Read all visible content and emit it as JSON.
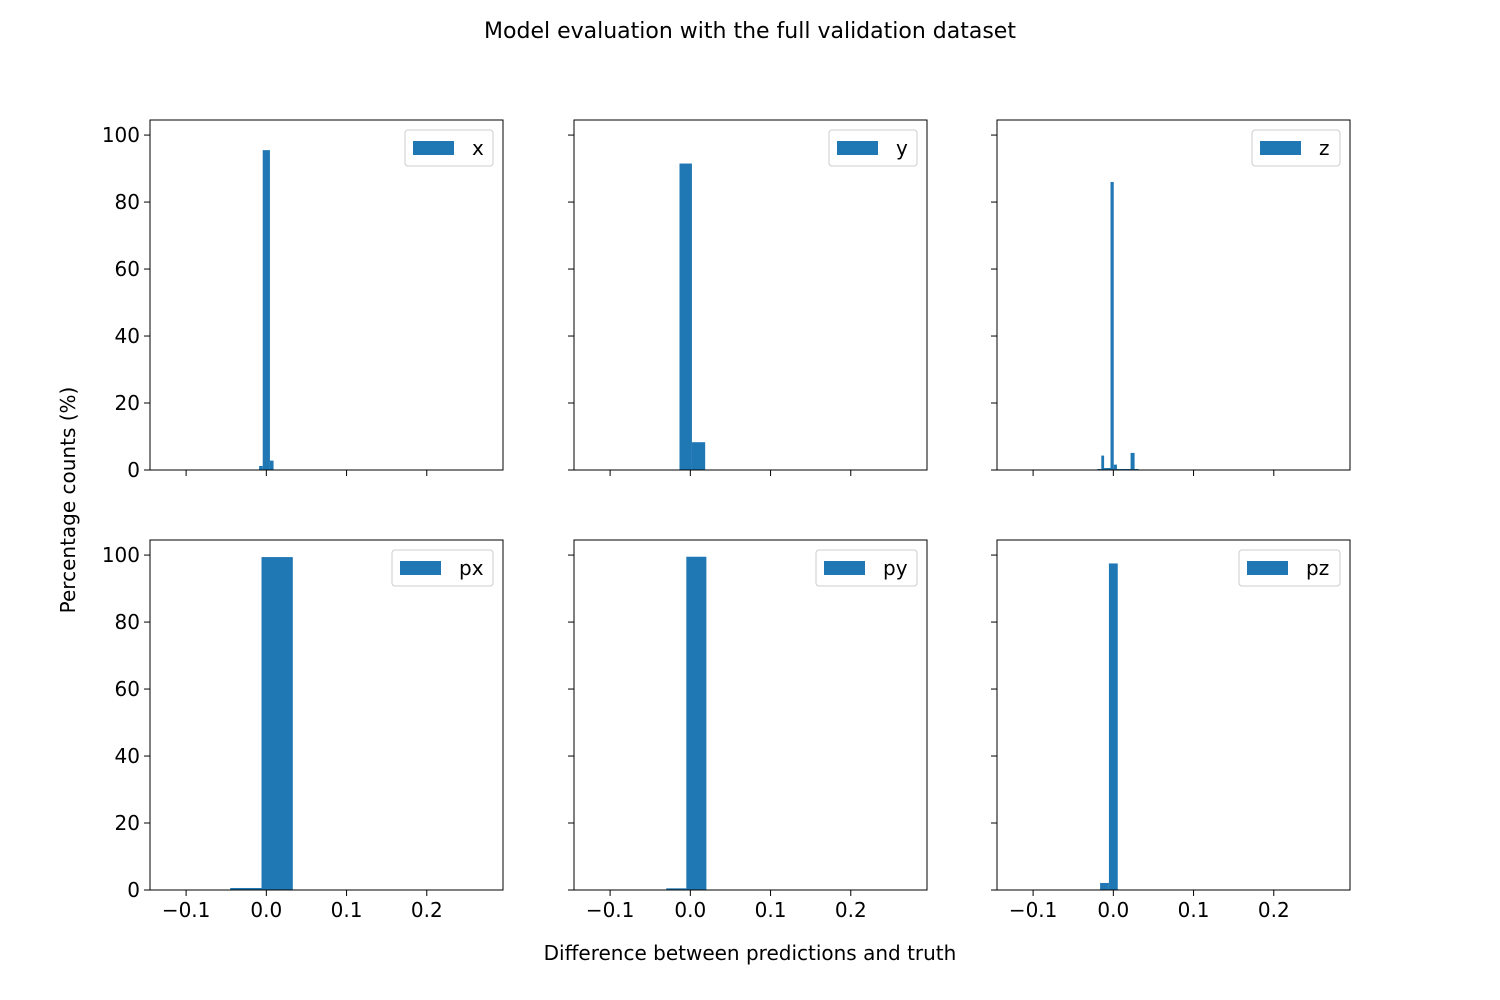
{
  "figure": {
    "title": "Model evaluation with the full validation dataset",
    "ylabel": "Percentage counts (%)",
    "xlabel": "Difference between predictions and truth"
  },
  "chart_data": [
    {
      "type": "bar",
      "legend": "x",
      "legend_position": "top-right",
      "color": "#1f77b4",
      "xlim": [
        -0.145,
        0.295
      ],
      "ylim": [
        0,
        104.5
      ],
      "xticks": [
        -0.1,
        0.0,
        0.1,
        0.2
      ],
      "xtick_labels": [
        "−0.1",
        "0.0",
        "0.1",
        "0.2"
      ],
      "yticks": [
        0,
        20,
        40,
        60,
        80,
        100
      ],
      "ytick_labels": [
        "0",
        "20",
        "40",
        "60",
        "80",
        "100"
      ],
      "show_xtick_labels": false,
      "show_ytick_labels": true,
      "bins": [
        {
          "x0": -0.009,
          "x1": -0.0045,
          "value": 1.2
        },
        {
          "x0": -0.0045,
          "x1": 0.0045,
          "value": 95.5
        },
        {
          "x0": 0.0045,
          "x1": 0.009,
          "value": 2.8
        }
      ]
    },
    {
      "type": "bar",
      "legend": "y",
      "legend_position": "top-right",
      "color": "#1f77b4",
      "xlim": [
        -0.145,
        0.295
      ],
      "ylim": [
        0,
        104.5
      ],
      "xticks": [
        -0.1,
        0.0,
        0.1,
        0.2
      ],
      "xtick_labels": [
        "−0.1",
        "0.0",
        "0.1",
        "0.2"
      ],
      "yticks": [
        0,
        20,
        40,
        60,
        80,
        100
      ],
      "ytick_labels": [
        "0",
        "20",
        "40",
        "60",
        "80",
        "100"
      ],
      "show_xtick_labels": false,
      "show_ytick_labels": false,
      "bins": [
        {
          "x0": -0.0135,
          "x1": 0.002,
          "value": 91.5
        },
        {
          "x0": 0.002,
          "x1": 0.0185,
          "value": 8.3
        }
      ]
    },
    {
      "type": "bar",
      "legend": "z",
      "legend_position": "top-right",
      "color": "#1f77b4",
      "xlim": [
        -0.145,
        0.295
      ],
      "ylim": [
        0,
        104.5
      ],
      "xticks": [
        -0.1,
        0.0,
        0.1,
        0.2
      ],
      "xtick_labels": [
        "−0.1",
        "0.0",
        "0.1",
        "0.2"
      ],
      "yticks": [
        0,
        20,
        40,
        60,
        80,
        100
      ],
      "ytick_labels": [
        "0",
        "20",
        "40",
        "60",
        "80",
        "100"
      ],
      "show_xtick_labels": false,
      "show_ytick_labels": false,
      "bins": [
        {
          "x0": -0.02,
          "x1": -0.015,
          "value": 0.3
        },
        {
          "x0": -0.015,
          "x1": -0.0115,
          "value": 4.3
        },
        {
          "x0": -0.0115,
          "x1": -0.0035,
          "value": 0.6
        },
        {
          "x0": -0.0035,
          "x1": 0.0005,
          "value": 86
        },
        {
          "x0": 0.0005,
          "x1": 0.0045,
          "value": 1.6
        },
        {
          "x0": 0.0045,
          "x1": 0.0215,
          "value": 0.3
        },
        {
          "x0": 0.0215,
          "x1": 0.0265,
          "value": 5.1
        },
        {
          "x0": 0.0265,
          "x1": 0.0315,
          "value": 0.3
        }
      ]
    },
    {
      "type": "bar",
      "legend": "px",
      "legend_position": "top-right",
      "color": "#1f77b4",
      "xlim": [
        -0.145,
        0.295
      ],
      "ylim": [
        0,
        104.5
      ],
      "xticks": [
        -0.1,
        0.0,
        0.1,
        0.2
      ],
      "xtick_labels": [
        "−0.1",
        "0.0",
        "0.1",
        "0.2"
      ],
      "yticks": [
        0,
        20,
        40,
        60,
        80,
        100
      ],
      "ytick_labels": [
        "0",
        "20",
        "40",
        "60",
        "80",
        "100"
      ],
      "show_xtick_labels": true,
      "show_ytick_labels": true,
      "bins": [
        {
          "x0": -0.045,
          "x1": -0.006,
          "value": 0.6
        },
        {
          "x0": -0.006,
          "x1": 0.033,
          "value": 99.4
        }
      ]
    },
    {
      "type": "bar",
      "legend": "py",
      "legend_position": "top-right",
      "color": "#1f77b4",
      "xlim": [
        -0.145,
        0.295
      ],
      "ylim": [
        0,
        104.5
      ],
      "xticks": [
        -0.1,
        0.0,
        0.1,
        0.2
      ],
      "xtick_labels": [
        "−0.1",
        "0.0",
        "0.1",
        "0.2"
      ],
      "yticks": [
        0,
        20,
        40,
        60,
        80,
        100
      ],
      "ytick_labels": [
        "0",
        "20",
        "40",
        "60",
        "80",
        "100"
      ],
      "show_xtick_labels": true,
      "show_ytick_labels": false,
      "bins": [
        {
          "x0": -0.03,
          "x1": -0.005,
          "value": 0.5
        },
        {
          "x0": -0.005,
          "x1": 0.02,
          "value": 99.5
        }
      ]
    },
    {
      "type": "bar",
      "legend": "pz",
      "legend_position": "top-right",
      "color": "#1f77b4",
      "xlim": [
        -0.145,
        0.295
      ],
      "ylim": [
        0,
        104.5
      ],
      "xticks": [
        -0.1,
        0.0,
        0.1,
        0.2
      ],
      "xtick_labels": [
        "−0.1",
        "0.0",
        "0.1",
        "0.2"
      ],
      "yticks": [
        0,
        20,
        40,
        60,
        80,
        100
      ],
      "ytick_labels": [
        "0",
        "20",
        "40",
        "60",
        "80",
        "100"
      ],
      "show_xtick_labels": true,
      "show_ytick_labels": false,
      "bins": [
        {
          "x0": -0.0165,
          "x1": -0.0055,
          "value": 2.1
        },
        {
          "x0": -0.0055,
          "x1": 0.0055,
          "value": 97.5
        }
      ]
    }
  ]
}
